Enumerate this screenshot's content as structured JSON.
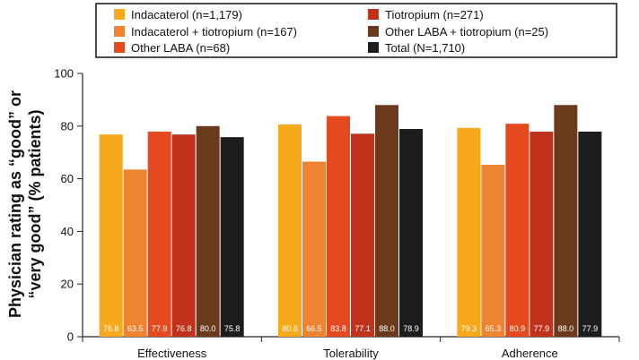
{
  "chart_data": {
    "type": "bar",
    "categories": [
      "Effectiveness",
      "Tolerability",
      "Adherence"
    ],
    "series": [
      {
        "name": "Indacaterol (n=1,179)",
        "color": "#F7A81B",
        "values": [
          76.8,
          80.6,
          79.3
        ],
        "labels": [
          "76.8",
          "80.6",
          "79.3"
        ]
      },
      {
        "name": "Indacaterol + tiotropium (n=167)",
        "color": "#EE8432",
        "values": [
          63.5,
          66.5,
          65.3
        ],
        "labels": [
          "63.5",
          "66.5",
          "65.3"
        ]
      },
      {
        "name": "Other LABA (n=68)",
        "color": "#E5491E",
        "values": [
          77.9,
          83.8,
          80.9
        ],
        "labels": [
          "77.9",
          "83.8",
          "80.9"
        ]
      },
      {
        "name": "Tiotropium (n=271)",
        "color": "#C0321C",
        "values": [
          76.8,
          77.1,
          77.9
        ],
        "labels": [
          "76.8",
          "77.1",
          "77.9"
        ]
      },
      {
        "name": "Other LABA + tiotropium (n=25)",
        "color": "#6B3A1D",
        "values": [
          80.0,
          88.0,
          88.0
        ],
        "labels": [
          "80.0",
          "88.0",
          "88.0"
        ]
      },
      {
        "name": "Total (N=1,710)",
        "color": "#1D1D1D",
        "values": [
          75.8,
          78.9,
          77.9
        ],
        "labels": [
          "75.8",
          "78.9",
          "77.9"
        ]
      }
    ],
    "ylabel_line1": "Physician rating as “good” or",
    "ylabel_line2": "“very good” (% patients)",
    "ylim": [
      0,
      100
    ],
    "yticks": [
      0,
      20,
      40,
      60,
      80,
      100
    ],
    "ytick_labels": [
      "0",
      "20",
      "40",
      "60",
      "80",
      "100"
    ],
    "grid": false,
    "legend_position": "top"
  }
}
